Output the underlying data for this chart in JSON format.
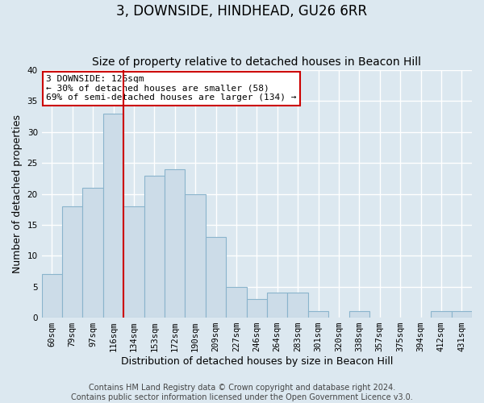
{
  "title": "3, DOWNSIDE, HINDHEAD, GU26 6RR",
  "subtitle": "Size of property relative to detached houses in Beacon Hill",
  "xlabel": "Distribution of detached houses by size in Beacon Hill",
  "ylabel": "Number of detached properties",
  "bar_labels": [
    "60sqm",
    "79sqm",
    "97sqm",
    "116sqm",
    "134sqm",
    "153sqm",
    "172sqm",
    "190sqm",
    "209sqm",
    "227sqm",
    "246sqm",
    "264sqm",
    "283sqm",
    "301sqm",
    "320sqm",
    "338sqm",
    "357sqm",
    "375sqm",
    "394sqm",
    "412sqm",
    "431sqm"
  ],
  "bar_values": [
    7,
    18,
    21,
    33,
    18,
    23,
    24,
    20,
    13,
    5,
    3,
    4,
    4,
    1,
    0,
    1,
    0,
    0,
    0,
    1,
    1
  ],
  "bar_color": "#ccdce8",
  "bar_edgecolor": "#8ab4cc",
  "vline_x": 3.5,
  "vline_color": "#cc0000",
  "annotation_text": "3 DOWNSIDE: 126sqm\n← 30% of detached houses are smaller (58)\n69% of semi-detached houses are larger (134) →",
  "annotation_box_edgecolor": "#cc0000",
  "annotation_box_facecolor": "#ffffff",
  "ylim": [
    0,
    40
  ],
  "yticks": [
    0,
    5,
    10,
    15,
    20,
    25,
    30,
    35,
    40
  ],
  "footer_line1": "Contains HM Land Registry data © Crown copyright and database right 2024.",
  "footer_line2": "Contains public sector information licensed under the Open Government Licence v3.0.",
  "background_color": "#dce8f0",
  "plot_bg_color": "#dce8f0",
  "grid_color": "#ffffff",
  "title_fontsize": 12,
  "subtitle_fontsize": 10,
  "axis_label_fontsize": 9,
  "tick_fontsize": 7.5,
  "footer_fontsize": 7,
  "annotation_fontsize": 8
}
